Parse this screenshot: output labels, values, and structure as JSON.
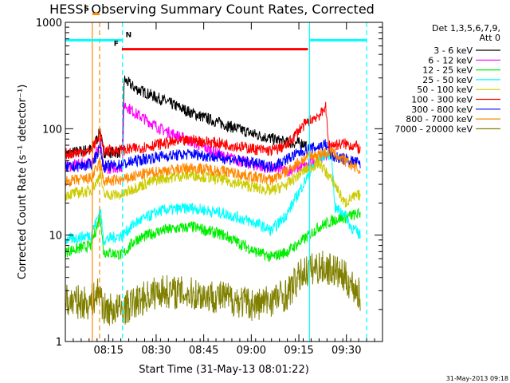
{
  "chart_data": {
    "type": "line",
    "title": "HESSI Observing Summary Count Rates, Corrected",
    "xlabel": "Start Time (31-May-13 08:01:22)",
    "ylabel": "Corrected Count Rate (s⁻¹ detector⁻¹)",
    "y_scale": "log",
    "ylim": [
      1,
      1000
    ],
    "xlim_minutes": [
      0,
      100
    ],
    "x_ticks": [
      {
        "value": 13.63,
        "label": "08:15"
      },
      {
        "value": 28.63,
        "label": "08:30"
      },
      {
        "value": 43.63,
        "label": "08:45"
      },
      {
        "value": 58.63,
        "label": "09:00"
      },
      {
        "value": 73.63,
        "label": "09:15"
      },
      {
        "value": 88.63,
        "label": "09:30"
      }
    ],
    "y_ticks": [
      {
        "value": 1,
        "label": "1"
      },
      {
        "value": 10,
        "label": "10"
      },
      {
        "value": 100,
        "label": "100"
      },
      {
        "value": 1000,
        "label": "1000"
      }
    ],
    "grid": false,
    "legend_position": "right",
    "legend_header": [
      "Det 1,3,5,6,7,9,",
      "Att 0"
    ],
    "series": [
      {
        "name": "3 - 6 keV",
        "color": "#000000",
        "points": [
          [
            0,
            58
          ],
          [
            8,
            64
          ],
          [
            10,
            80
          ],
          [
            11,
            95
          ],
          [
            12,
            60
          ],
          [
            18,
            60
          ],
          [
            18.5,
            290
          ],
          [
            22,
            240
          ],
          [
            30,
            190
          ],
          [
            40,
            140
          ],
          [
            50,
            110
          ],
          [
            60,
            88
          ],
          [
            70,
            74
          ],
          [
            75,
            73
          ],
          [
            76,
            70
          ]
        ]
      },
      {
        "name": "6 - 12 keV",
        "color": "#ff00ff",
        "points": [
          [
            0,
            44
          ],
          [
            8,
            48
          ],
          [
            10,
            62
          ],
          [
            11,
            75
          ],
          [
            12,
            42
          ],
          [
            18,
            44
          ],
          [
            18.5,
            170
          ],
          [
            22,
            140
          ],
          [
            30,
            100
          ],
          [
            40,
            75
          ],
          [
            50,
            55
          ],
          [
            60,
            45
          ],
          [
            70,
            40
          ],
          [
            76,
            45
          ],
          [
            80,
            52
          ],
          [
            83,
            58
          ]
        ]
      },
      {
        "name": "12 - 25 keV",
        "color": "#00ee00",
        "points": [
          [
            0,
            7
          ],
          [
            8,
            8
          ],
          [
            10,
            12
          ],
          [
            11,
            16
          ],
          [
            12,
            7
          ],
          [
            18,
            6.5
          ],
          [
            22,
            9
          ],
          [
            30,
            11
          ],
          [
            40,
            12
          ],
          [
            50,
            10
          ],
          [
            60,
            7
          ],
          [
            65,
            6.2
          ],
          [
            70,
            7
          ],
          [
            75,
            9
          ],
          [
            80,
            12
          ],
          [
            85,
            14
          ],
          [
            93,
            16
          ]
        ]
      },
      {
        "name": "25 - 50 keV",
        "color": "#00ffff",
        "points": [
          [
            0,
            9
          ],
          [
            8,
            10
          ],
          [
            10,
            14
          ],
          [
            11,
            18
          ],
          [
            12,
            9
          ],
          [
            18,
            10
          ],
          [
            22,
            13
          ],
          [
            30,
            17
          ],
          [
            40,
            18
          ],
          [
            50,
            16
          ],
          [
            60,
            13
          ],
          [
            65,
            11
          ],
          [
            70,
            16
          ],
          [
            75,
            30
          ],
          [
            80,
            55
          ],
          [
            84,
            58
          ],
          [
            85,
            18
          ],
          [
            88,
            16
          ],
          [
            90,
            12
          ],
          [
            93,
            10
          ]
        ]
      },
      {
        "name": "50 - 100 keV",
        "color": "#cccc00",
        "points": [
          [
            0,
            24
          ],
          [
            8,
            26
          ],
          [
            10,
            32
          ],
          [
            11,
            40
          ],
          [
            12,
            24
          ],
          [
            18,
            24
          ],
          [
            22,
            28
          ],
          [
            30,
            34
          ],
          [
            40,
            37
          ],
          [
            50,
            33
          ],
          [
            60,
            28
          ],
          [
            65,
            26
          ],
          [
            70,
            30
          ],
          [
            75,
            40
          ],
          [
            80,
            48
          ],
          [
            85,
            30
          ],
          [
            88,
            20
          ],
          [
            90,
            22
          ],
          [
            93,
            24
          ]
        ]
      },
      {
        "name": "100 - 300 keV",
        "color": "#ff0000",
        "points": [
          [
            0,
            58
          ],
          [
            8,
            62
          ],
          [
            10,
            78
          ],
          [
            11,
            92
          ],
          [
            12,
            62
          ],
          [
            18,
            63
          ],
          [
            22,
            65
          ],
          [
            30,
            72
          ],
          [
            40,
            78
          ],
          [
            50,
            72
          ],
          [
            60,
            64
          ],
          [
            65,
            62
          ],
          [
            70,
            70
          ],
          [
            74,
            100
          ],
          [
            77,
            120
          ],
          [
            81,
            140
          ],
          [
            82,
            170
          ],
          [
            83,
            70
          ],
          [
            88,
            72
          ],
          [
            92,
            68
          ],
          [
            93,
            62
          ]
        ]
      },
      {
        "name": "300 - 800 keV",
        "color": "#0000ff",
        "points": [
          [
            0,
            43
          ],
          [
            8,
            46
          ],
          [
            10,
            58
          ],
          [
            11,
            68
          ],
          [
            12,
            44
          ],
          [
            18,
            46
          ],
          [
            22,
            50
          ],
          [
            30,
            55
          ],
          [
            40,
            58
          ],
          [
            50,
            53
          ],
          [
            60,
            47
          ],
          [
            65,
            44
          ],
          [
            70,
            52
          ],
          [
            75,
            62
          ],
          [
            80,
            68
          ],
          [
            82,
            72
          ],
          [
            84,
            55
          ],
          [
            88,
            52
          ],
          [
            92,
            48
          ],
          [
            93,
            45
          ]
        ]
      },
      {
        "name": "800 - 7000 keV",
        "color": "#ff8800",
        "points": [
          [
            0,
            32
          ],
          [
            8,
            34
          ],
          [
            10,
            42
          ],
          [
            11,
            50
          ],
          [
            12,
            32
          ],
          [
            18,
            33
          ],
          [
            22,
            36
          ],
          [
            30,
            40
          ],
          [
            40,
            43
          ],
          [
            50,
            40
          ],
          [
            60,
            35
          ],
          [
            65,
            33
          ],
          [
            70,
            40
          ],
          [
            75,
            52
          ],
          [
            80,
            58
          ],
          [
            84,
            60
          ],
          [
            88,
            50
          ],
          [
            92,
            42
          ],
          [
            93,
            38
          ]
        ]
      },
      {
        "name": "7000 - 20000 keV",
        "color": "#808000",
        "points": [
          [
            0,
            2.4
          ],
          [
            8,
            2.3
          ],
          [
            10,
            2.8
          ],
          [
            11,
            3
          ],
          [
            12,
            2
          ],
          [
            18,
            2
          ],
          [
            25,
            2.6
          ],
          [
            30,
            3
          ],
          [
            40,
            2.8
          ],
          [
            50,
            2.6
          ],
          [
            60,
            2.2
          ],
          [
            70,
            2.8
          ],
          [
            75,
            4.5
          ],
          [
            80,
            5
          ],
          [
            84,
            4.8
          ],
          [
            88,
            4
          ],
          [
            92,
            3
          ],
          [
            93,
            2.6
          ]
        ]
      }
    ],
    "flag_bars": [
      {
        "label": "S",
        "color": "#ff8800",
        "x0": 8.5,
        "x1": 10.8,
        "y": 1200
      },
      {
        "label": "N",
        "color": "#00ffff",
        "x0": 0,
        "x1": 18,
        "y": 680
      },
      {
        "label": "",
        "color": "#00ffff",
        "x0": 77,
        "x1": 95,
        "y": 680
      },
      {
        "label": "F",
        "color": "#ff0000",
        "x0": 17.8,
        "x1": 76.5,
        "y": 560
      }
    ],
    "markers": [
      {
        "color": "#ff8800",
        "style": "solid",
        "x": 8.5
      },
      {
        "color": "#ff8800",
        "style": "dashed",
        "x": 10.8
      },
      {
        "color": "#00ffff",
        "style": "dashed",
        "x": 18
      },
      {
        "color": "#00ffff",
        "style": "solid",
        "x": 77
      },
      {
        "color": "#00ffff",
        "style": "dashed",
        "x": 95
      }
    ],
    "timestamp": "31-May-2013 09:18"
  }
}
